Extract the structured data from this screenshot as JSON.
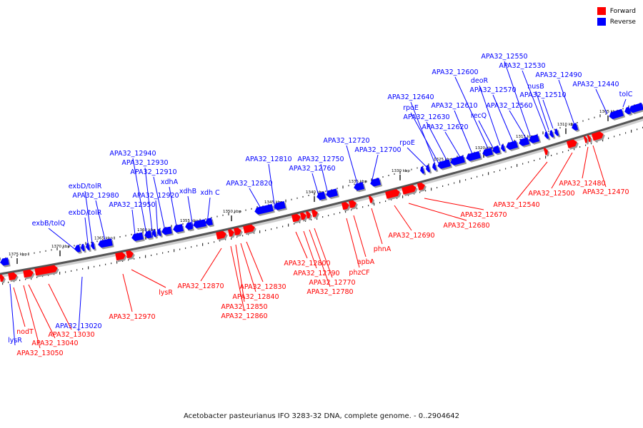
{
  "legend": [
    {
      "label": "Forward",
      "color": "#ff0000"
    },
    {
      "label": "Reverse",
      "color": "#0000ff"
    }
  ],
  "caption": "Acetobacter pasteurianus IFO 3283-32 DNA, complete genome. - 0..2904642",
  "colors": {
    "forward": "#ff0000",
    "reverse": "#0000ff",
    "backbone": "#555555"
  },
  "ticks": [
    "1305 kbp",
    "1310 kbp",
    "1315 kbp",
    "1320 kbp",
    "1325 kbp",
    "1330 kbp",
    "1335 kbp",
    "1340 kbp",
    "1345 kbp",
    "1350 kbp",
    "1355 kbp",
    "1360 kbp",
    "1365 kbp",
    "1370 kbp",
    "1375 kbp"
  ],
  "reverse_labels": [
    "tolC",
    "APA32_12440",
    "APA32_12490",
    "APA32_12510",
    "nusB",
    "APA32_12530",
    "APA32_12550",
    "APA32_12560",
    "APA32_12570",
    "deoR",
    "APA32_12600",
    "recQ",
    "APA32_12610",
    "APA32_12620",
    "APA32_12630",
    "rpoE",
    "APA32_12640",
    "rpoE",
    "APA32_12700",
    "APA32_12720",
    "APA32_12750",
    "APA32_12760",
    "APA32_12810",
    "APA32_12820",
    "xdh C",
    "xdhB",
    "xdhA",
    "APA32_12910",
    "APA32_12920",
    "APA32_12930",
    "APA32_12940",
    "APA32_12950",
    "APA32_12980",
    "exbD/tolR",
    "exbD/tolR",
    "exbB/tolQ",
    "APA32_13020",
    "lysR"
  ],
  "forward_labels": [
    "APA32_12470",
    "APA32_12480",
    "APA32_12500",
    "APA32_12540",
    "APA32_12670",
    "APA32_12680",
    "APA32_12690",
    "phnA",
    "apbA",
    "phzCF",
    "APA32_12770",
    "APA32_12780",
    "APA32_12790",
    "APA32_12800",
    "APA32_12830",
    "APA32_12840",
    "APA32_12850",
    "APA32_12860",
    "APA32_12870",
    "lysR",
    "APA32_12970",
    "APA32_13030",
    "APA32_13040",
    "APA32_13050",
    "nodT"
  ]
}
